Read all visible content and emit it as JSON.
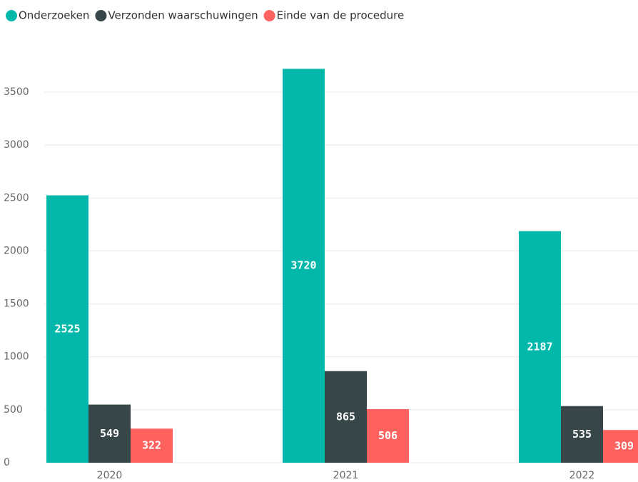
{
  "chart_data": {
    "type": "bar",
    "categories": [
      "2020",
      "2021",
      "2022"
    ],
    "series": [
      {
        "name": "Onderzoeken",
        "color": "#01b8aa",
        "values": [
          2525,
          3720,
          2187
        ]
      },
      {
        "name": "Verzonden waarschuwingen",
        "color": "#374649",
        "values": [
          549,
          865,
          535
        ]
      },
      {
        "name": "Einde van de procedure",
        "color": "#fd625e",
        "values": [
          322,
          506,
          309
        ]
      }
    ],
    "ylim": [
      0,
      3800
    ],
    "yticks": [
      0,
      500,
      1000,
      1500,
      2000,
      2500,
      3000,
      3500
    ],
    "grid": true,
    "legend": "top-left",
    "data_labels": true
  }
}
